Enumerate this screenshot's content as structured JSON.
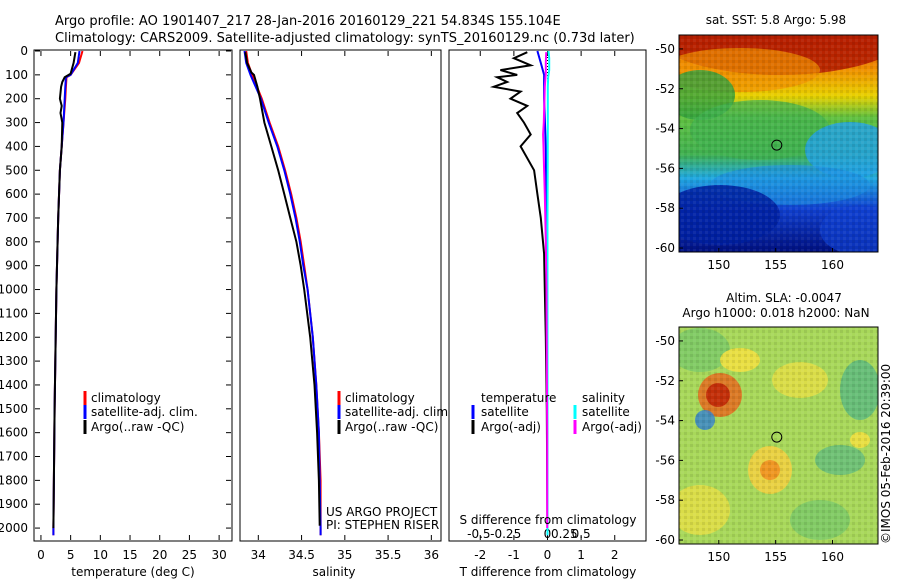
{
  "header": {
    "line1": "Argo profile: AO 1901407_217 28-Jan-2016 20160129_221 54.834S 155.104E",
    "line2": "Climatology: CARS2009. Satellite-adjusted climatology: synTS_20160129.nc (0.73d later)"
  },
  "credit": "©IMOS 05-Feb-2016 20:39:00",
  "colors": {
    "climatology": "#ff0000",
    "satellite": "#0000ff",
    "argo": "#000000",
    "salinity_satellite": "#00ffff",
    "argo_adj_salinity": "#ff00ff"
  },
  "chart_data": [
    {
      "type": "line",
      "id": "temperature",
      "xlabel": "temperature (deg C)",
      "xlim": [
        -1,
        32
      ],
      "ylim": [
        0,
        2050
      ],
      "x_ticks": [
        0,
        5,
        10,
        15,
        20,
        25,
        30
      ],
      "y_ticks": [
        0,
        100,
        200,
        300,
        400,
        500,
        600,
        700,
        800,
        900,
        1000,
        1100,
        1200,
        1300,
        1400,
        1500,
        1600,
        1700,
        1800,
        1900,
        2000
      ],
      "legend": {
        "position": "lower-middle",
        "entries": [
          "climatology",
          "satellite-adj. clim.",
          "Argo(..raw -QC)"
        ]
      },
      "series": [
        {
          "name": "climatology",
          "color": "#ff0000",
          "depth": [
            0,
            50,
            100,
            110,
            150,
            200,
            300,
            400,
            500,
            700,
            1000,
            1500,
            2000,
            2030
          ],
          "values": [
            7.0,
            6.4,
            5.0,
            4.3,
            4.2,
            4.1,
            3.8,
            3.5,
            3.2,
            2.9,
            2.6,
            2.3,
            2.1,
            2.1
          ]
        },
        {
          "name": "satellite-adj. clim.",
          "color": "#0000ff",
          "depth": [
            0,
            50,
            100,
            110,
            150,
            200,
            300,
            400,
            500,
            700,
            1000,
            1500,
            2000,
            2030
          ],
          "values": [
            6.5,
            6.2,
            5.0,
            4.2,
            4.1,
            4.0,
            3.8,
            3.5,
            3.2,
            2.9,
            2.6,
            2.3,
            2.1,
            2.1
          ]
        },
        {
          "name": "Argo(..raw -QC)",
          "color": "#000000",
          "depth": [
            5,
            50,
            95,
            110,
            130,
            150,
            200,
            230,
            260,
            300,
            400,
            500,
            700,
            1000,
            1500,
            2000
          ],
          "values": [
            5.8,
            5.5,
            5.0,
            4.0,
            3.6,
            3.4,
            3.2,
            3.5,
            3.3,
            3.6,
            3.5,
            3.2,
            2.9,
            2.6,
            2.3,
            2.1
          ]
        }
      ]
    },
    {
      "type": "line",
      "id": "salinity",
      "xlabel": "salinity",
      "xlim": [
        33.8,
        36.1
      ],
      "ylim": [
        0,
        2050
      ],
      "x_ticks": [
        34,
        34.5,
        35,
        35.5,
        36
      ],
      "legend": {
        "position": "lower-middle",
        "entries": [
          "climatology",
          "satellite-adj. clim.",
          "Argo(..raw -QC)"
        ]
      },
      "annotation": [
        "US ARGO PROJECT",
        "PI: STEPHEN RISER"
      ],
      "series": [
        {
          "name": "climatology",
          "color": "#ff0000",
          "depth": [
            0,
            50,
            100,
            200,
            300,
            400,
            500,
            600,
            700,
            800,
            900,
            1000,
            1200,
            1400,
            1600,
            1800,
            2000,
            2030
          ],
          "values": [
            33.86,
            33.88,
            33.93,
            34.04,
            34.13,
            34.23,
            34.31,
            34.38,
            34.44,
            34.49,
            34.53,
            34.57,
            34.63,
            34.67,
            34.7,
            34.72,
            34.72,
            34.72
          ]
        },
        {
          "name": "satellite-adj. clim.",
          "color": "#0000ff",
          "depth": [
            0,
            50,
            100,
            200,
            300,
            400,
            500,
            600,
            700,
            800,
            900,
            1000,
            1200,
            1400,
            1600,
            1800,
            2000,
            2030
          ],
          "values": [
            33.84,
            33.86,
            33.91,
            34.03,
            34.12,
            34.22,
            34.3,
            34.37,
            34.43,
            34.48,
            34.52,
            34.57,
            34.63,
            34.67,
            34.7,
            34.71,
            34.72,
            34.72
          ]
        },
        {
          "name": "Argo(..raw -QC)",
          "color": "#000000",
          "depth": [
            5,
            50,
            90,
            100,
            150,
            200,
            300,
            400,
            500,
            600,
            700,
            800,
            900,
            1000,
            1200,
            1400,
            1600,
            1800,
            1990
          ],
          "values": [
            33.85,
            33.87,
            33.92,
            33.95,
            33.99,
            34.02,
            34.07,
            34.15,
            34.23,
            34.3,
            34.37,
            34.44,
            34.49,
            34.53,
            34.6,
            34.65,
            34.68,
            34.7,
            34.71
          ]
        }
      ]
    },
    {
      "type": "line",
      "id": "differences",
      "xlabel": "T difference from climatology",
      "x2label": "S difference from climatology",
      "xlim": [
        -2.9,
        2.9
      ],
      "ylim": [
        0,
        2050
      ],
      "x_ticks": [
        -2,
        -1,
        0,
        1,
        2
      ],
      "x2_tick_labels": [
        "-0.5",
        "-0.25",
        "0",
        "0.25",
        "0.5"
      ],
      "legend_groups": [
        {
          "title": "temperature",
          "entries": [
            "satellite",
            "Argo(-adj)"
          ]
        },
        {
          "title": "salinity",
          "entries": [
            "satellite",
            "Argo(-adj)"
          ]
        }
      ],
      "series": [
        {
          "name": "temperature satellite",
          "color": "#0000ff",
          "depth": [
            0,
            50,
            100,
            200,
            400,
            700,
            1000,
            1500,
            2000,
            2030
          ],
          "values": [
            -0.3,
            -0.2,
            -0.1,
            -0.1,
            -0.05,
            -0.03,
            -0.02,
            -0.01,
            0,
            0
          ]
        },
        {
          "name": "temperature Argo(-adj)",
          "color": "#000000",
          "depth": [
            5,
            30,
            60,
            80,
            100,
            110,
            130,
            150,
            170,
            200,
            230,
            260,
            300,
            350,
            400,
            500,
            600,
            700,
            850,
            1000,
            1200,
            1500,
            2000
          ],
          "values": [
            -0.6,
            -1.0,
            -0.5,
            -1.4,
            -0.9,
            -1.5,
            -1.2,
            -1.6,
            -0.8,
            -1.1,
            -0.6,
            -0.9,
            -0.7,
            -0.5,
            -0.8,
            -0.4,
            -0.3,
            -0.2,
            -0.1,
            -0.08,
            -0.05,
            -0.02,
            0
          ]
        },
        {
          "name": "salinity satellite",
          "color": "#00ffff",
          "depth": [
            0,
            30,
            80,
            110,
            150,
            200,
            300,
            500,
            700,
            1000,
            1500,
            2000,
            2030
          ],
          "values": [
            0.03,
            0.05,
            0.05,
            0.02,
            0.01,
            0.01,
            0.01,
            0.005,
            0,
            0,
            0,
            0,
            0
          ]
        },
        {
          "name": "salinity Argo(-adj)",
          "color": "#ff00ff",
          "depth": [
            5,
            50,
            95,
            110,
            150,
            200,
            250,
            300,
            350,
            400,
            500,
            600,
            800,
            1000,
            1300,
            1600,
            2000
          ],
          "values": [
            -0.04,
            -0.05,
            -0.05,
            -0.06,
            -0.08,
            -0.09,
            -0.1,
            -0.11,
            -0.13,
            -0.12,
            -0.1,
            -0.08,
            -0.05,
            -0.03,
            -0.02,
            -0.01,
            -0.01
          ]
        }
      ]
    },
    {
      "type": "heatmap",
      "id": "sst-map",
      "title": "sat. SST: 5.8 Argo: 5.98",
      "xlim": [
        146.5,
        164
      ],
      "ylim": [
        -60.2,
        -49.3
      ],
      "x_ticks": [
        150,
        155,
        160
      ],
      "y_ticks": [
        -50,
        -52,
        -54,
        -56,
        -58,
        -60
      ],
      "marker": {
        "lon": 155.1,
        "lat": -54.83
      }
    },
    {
      "type": "heatmap",
      "id": "sla-map",
      "title": "Altim. SLA: -0.0047",
      "subtitle": "Argo h1000: 0.018 h2000: NaN",
      "xlim": [
        146.5,
        164
      ],
      "ylim": [
        -60.2,
        -49.3
      ],
      "x_ticks": [
        150,
        155,
        160
      ],
      "y_ticks": [
        -50,
        -52,
        -54,
        -56,
        -58,
        -60
      ],
      "marker": {
        "lon": 155.1,
        "lat": -54.83
      }
    }
  ]
}
